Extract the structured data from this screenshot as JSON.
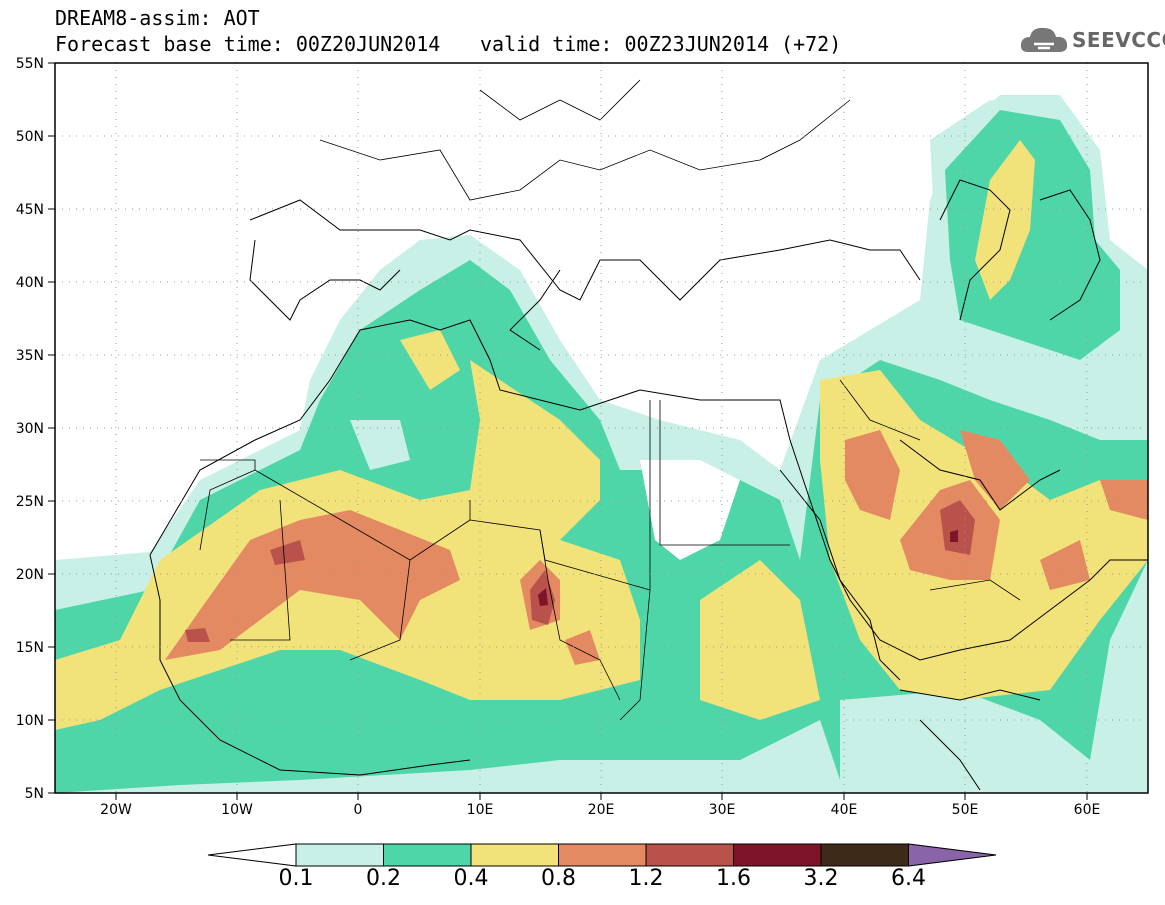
{
  "title": {
    "line1": "DREAM8-assim: AOT",
    "base_time": "Forecast base time: 00Z20JUN2014",
    "valid_time": "valid time: 00Z23JUN2014 (+72)"
  },
  "logo": {
    "text": "SEEVCCC",
    "icon": "cloud-icon"
  },
  "map": {
    "lat_labels": [
      "55N",
      "50N",
      "45N",
      "40N",
      "35N",
      "30N",
      "25N",
      "20N",
      "15N",
      "10N",
      "5N"
    ],
    "lon_labels": [
      "20W",
      "10W",
      "0",
      "10E",
      "20E",
      "30E",
      "40E",
      "50E",
      "60E"
    ]
  },
  "colorbar": {
    "labels": [
      "0.1",
      "0.2",
      "0.4",
      "0.8",
      "1.2",
      "1.6",
      "3.2",
      "6.4"
    ],
    "colors": [
      "#c8f0e6",
      "#4fd6a8",
      "#f2e27a",
      "#e48a62",
      "#b8524a",
      "#7e1428",
      "#3e2a18",
      "#8a64a8"
    ]
  }
}
